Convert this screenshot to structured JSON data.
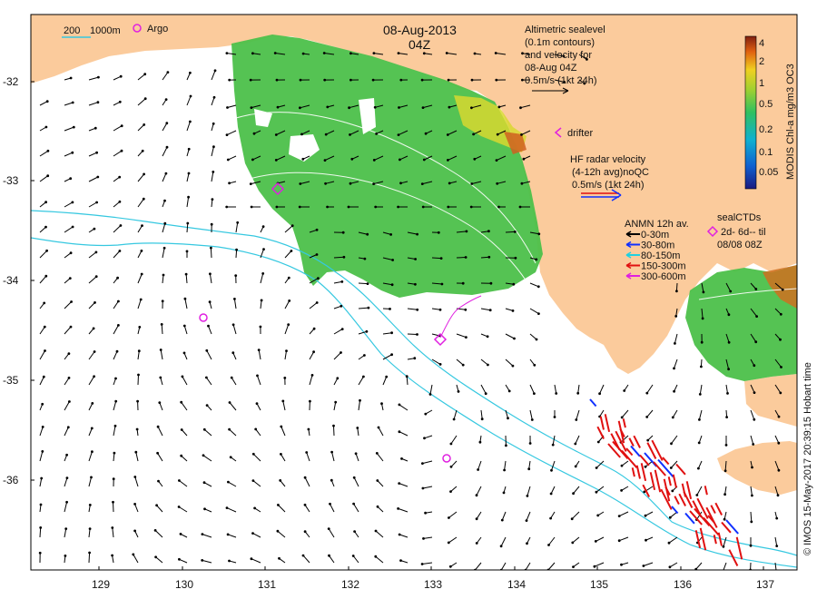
{
  "map": {
    "date": "08-Aug-2013",
    "time": "04Z",
    "credit": "© IMOS 15-May-2017 20:39:15 Hobart time",
    "lon_ticks": [
      "129",
      "130",
      "131",
      "132",
      "133",
      "134",
      "135",
      "136",
      "137"
    ],
    "lat_ticks": [
      "-32",
      "-33",
      "-34",
      "-35",
      "-36"
    ]
  },
  "legend": {
    "contours": {
      "label_a": "200",
      "label_b": "1000m",
      "color": "#36c8e0"
    },
    "argo": {
      "label": "Argo",
      "color": "#e020e0"
    },
    "altimetric": {
      "line1": "Altimetric sealevel",
      "line2": "(0.1m contours)",
      "line3": "and velocity for",
      "line4": "08-Aug 04Z",
      "scale": "0.5m/s (1kt 24h)"
    },
    "drifter": {
      "label": "drifter",
      "color": "#e020e0"
    },
    "hf_radar": {
      "line1": "HF radar velocity",
      "line2": "(4-12h avg)noQC",
      "scale": "0.5m/s (1kt 24h)"
    },
    "anmn": {
      "title": "ANMN 12h av.",
      "items": [
        {
          "label": "0-30m",
          "color": "#000000"
        },
        {
          "label": "30-80m",
          "color": "#1030ff"
        },
        {
          "label": "80-150m",
          "color": "#20d0e0"
        },
        {
          "label": "150-300m",
          "color": "#e01010"
        },
        {
          "label": "300-600m",
          "color": "#e020e0"
        }
      ]
    },
    "sealctds": {
      "title": "sealCTDs",
      "line2": "2d- 6d-- til",
      "line3": "08/08 08Z",
      "color": "#e020e0"
    },
    "colorbar": {
      "title": "MODIS Chl-a mg/m3 OC3",
      "ticks": [
        "4",
        "2",
        "1",
        "0.5",
        "0.2",
        "0.1",
        "0.05"
      ]
    }
  },
  "colors": {
    "land": "#fbcb9c",
    "ocean": "#ffffff",
    "chl_green": "#4cc04a",
    "contour_cyan": "#36c8e0"
  }
}
